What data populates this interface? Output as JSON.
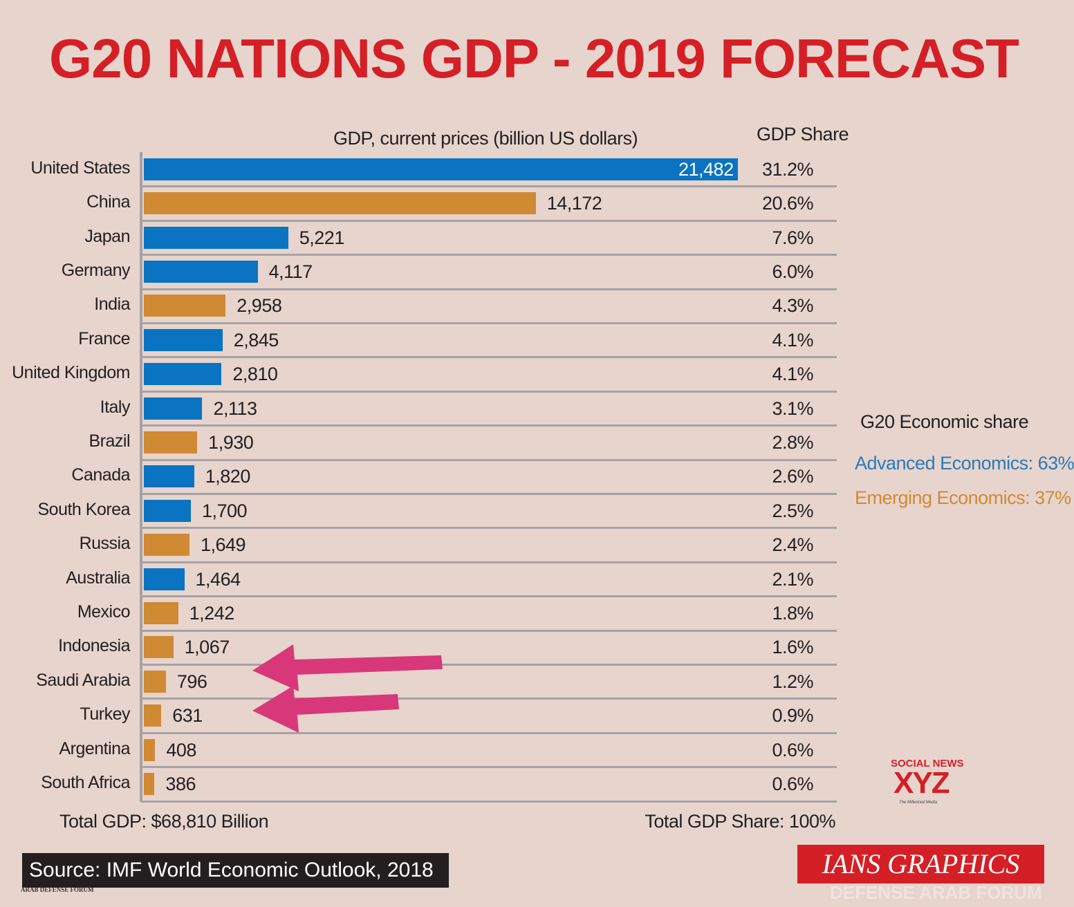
{
  "title": "G20 NATIONS GDP - 2019 FORECAST",
  "colors": {
    "advanced": "#0a74c2",
    "emerging": "#d08a33",
    "title": "#d51f26",
    "arrow": "#d8387a",
    "background": "#e7d4cd"
  },
  "chart_data": {
    "type": "bar",
    "orientation": "horizontal",
    "title": "G20 NATIONS GDP - 2019 FORECAST",
    "xlabel": "GDP, current prices (billion US dollars)",
    "share_header": "GDP Share",
    "categories": [
      "United States",
      "China",
      "Japan",
      "Germany",
      "India",
      "France",
      "United Kingdom",
      "Italy",
      "Brazil",
      "Canada",
      "South Korea",
      "Russia",
      "Australia",
      "Mexico",
      "Indonesia",
      "Saudi Arabia",
      "Turkey",
      "Argentina",
      "South Africa"
    ],
    "values": [
      21482,
      14172,
      5221,
      4117,
      2958,
      2845,
      2810,
      2113,
      1930,
      1820,
      1700,
      1649,
      1464,
      1242,
      1067,
      796,
      631,
      408,
      386
    ],
    "value_labels": [
      "21,482",
      "14,172",
      "5,221",
      "4,117",
      "2,958",
      "2,845",
      "2,810",
      "2,113",
      "1,930",
      "1,820",
      "1,700",
      "1,649",
      "1,464",
      "1,242",
      "1,067",
      "796",
      "631",
      "408",
      "386"
    ],
    "shares": [
      "31.2%",
      "20.6%",
      "7.6%",
      "6.0%",
      "4.3%",
      "4.1%",
      "4.1%",
      "3.1%",
      "2.8%",
      "2.6%",
      "2.5%",
      "2.4%",
      "2.1%",
      "1.8%",
      "1.6%",
      "1.2%",
      "0.9%",
      "0.6%",
      "0.6%"
    ],
    "groups": [
      "advanced",
      "emerging",
      "advanced",
      "advanced",
      "emerging",
      "advanced",
      "advanced",
      "advanced",
      "emerging",
      "advanced",
      "advanced",
      "emerging",
      "advanced",
      "emerging",
      "emerging",
      "emerging",
      "emerging",
      "emerging",
      "emerging"
    ],
    "highlighted": [
      "Saudi Arabia",
      "Turkey"
    ],
    "grid": false
  },
  "legend": {
    "title": "G20 Economic share",
    "advanced": "Advanced Economics: 63%",
    "emerging": "Emerging Economics: 37%"
  },
  "totals": {
    "gdp": "Total GDP: $68,810 Billion",
    "share": "Total GDP Share: 100%"
  },
  "source": "Source: IMF World Economic Outlook, 2018",
  "credit": "IANS GRAPHICS",
  "watermarks": {
    "social": "SOCIAL NEWS",
    "xyz": "XYZ",
    "tagline": "The Millennial Media",
    "forum": "DEFENSE ARAB FORUM",
    "forum_logo": "ARAB DEFENSE FORUM"
  }
}
